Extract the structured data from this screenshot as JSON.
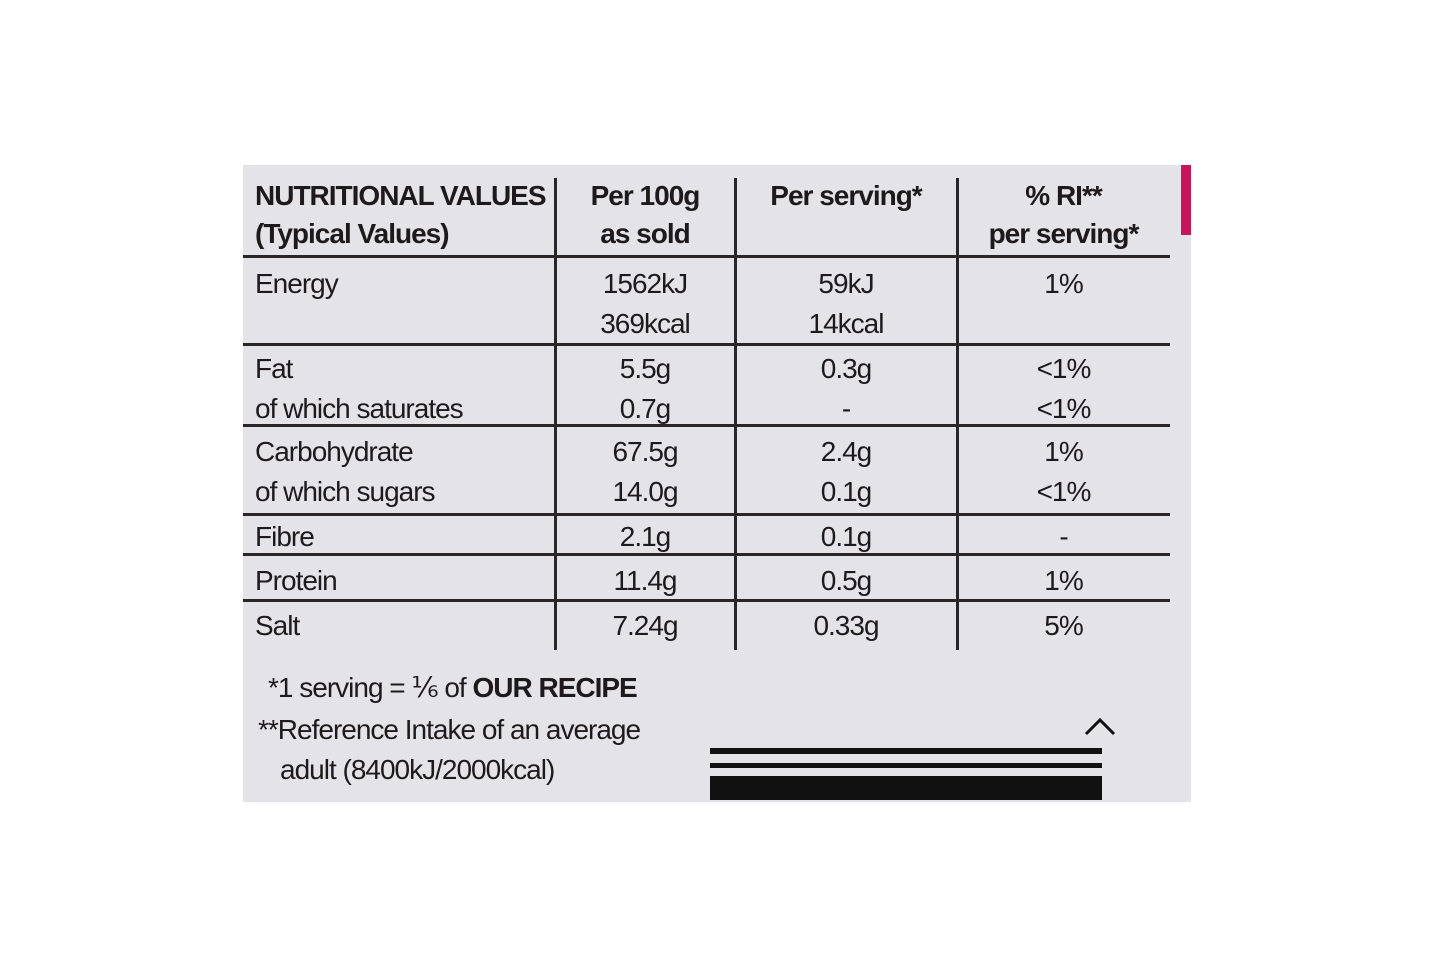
{
  "table": {
    "header": [
      [
        "NUTRITIONAL VALUES",
        "(Typical Values)"
      ],
      [
        "Per 100g",
        "as sold"
      ],
      [
        "Per serving*"
      ],
      [
        "% RI**",
        "per serving*"
      ]
    ],
    "rows": [
      [
        [
          "Energy"
        ],
        [
          "1562kJ",
          "369kcal"
        ],
        [
          "59kJ",
          "14kcal"
        ],
        [
          "1%"
        ]
      ],
      [
        [
          "Fat",
          "of which saturates"
        ],
        [
          "5.5g",
          "0.7g"
        ],
        [
          "0.3g",
          "-"
        ],
        [
          "<1%",
          "<1%"
        ]
      ],
      [
        [
          "Carbohydrate",
          "of which sugars"
        ],
        [
          "67.5g",
          "14.0g"
        ],
        [
          "2.4g",
          "0.1g"
        ],
        [
          "1%",
          "<1%"
        ]
      ],
      [
        [
          "Fibre"
        ],
        [
          "2.1g"
        ],
        [
          "0.1g"
        ],
        [
          "-"
        ]
      ],
      [
        [
          "Protein"
        ],
        [
          "11.4g"
        ],
        [
          "0.5g"
        ],
        [
          "1%"
        ]
      ],
      [
        [
          "Salt"
        ],
        [
          "7.24g"
        ],
        [
          "0.33g"
        ],
        [
          "5%"
        ]
      ]
    ]
  },
  "footnotes": {
    "serving": {
      "text": "*1 serving = ⅙ of ",
      "emphasis": "OUR RECIPE"
    },
    "reference": [
      "**Reference Intake of an average",
      "adult (8400kJ/2000kcal)"
    ]
  }
}
